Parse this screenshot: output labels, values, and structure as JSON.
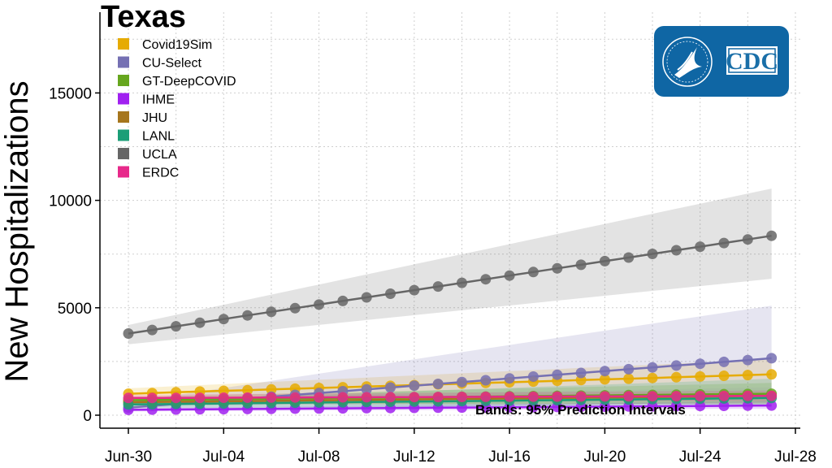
{
  "chart_data": {
    "type": "line",
    "title": "Texas",
    "ylabel": "New Hospitalizations",
    "xlabel": "",
    "ylim": [
      0,
      18500
    ],
    "xlim": [
      0,
      28
    ],
    "yticks": [
      0,
      5000,
      10000,
      15000
    ],
    "xticks": [
      {
        "day": 0,
        "label": "Jun-30"
      },
      {
        "day": 4,
        "label": "Jul-04"
      },
      {
        "day": 8,
        "label": "Jul-08"
      },
      {
        "day": 12,
        "label": "Jul-12"
      },
      {
        "day": 16,
        "label": "Jul-16"
      },
      {
        "day": 20,
        "label": "Jul-20"
      },
      {
        "day": 24,
        "label": "Jul-24"
      },
      {
        "day": 28,
        "label": "Jul-28"
      }
    ],
    "grid": true,
    "legend_position": "top-left",
    "annotation": "Bands: 95% Prediction Intervals",
    "series": [
      {
        "name": "Covid19Sim",
        "color": "#e6ab02",
        "start": 1000,
        "end": 1900,
        "lower_start": 750,
        "lower_end": 1300,
        "upper_start": 1250,
        "upper_end": 2600
      },
      {
        "name": "CU-Select",
        "color": "#7570b3",
        "start": 350,
        "end": 2650,
        "lower_start": 200,
        "lower_end": 600,
        "upper_start": 600,
        "upper_end": 5100
      },
      {
        "name": "GT-DeepCOVID",
        "color": "#66a61e",
        "start": 700,
        "end": 1000,
        "lower_start": 550,
        "lower_end": 500,
        "upper_start": 850,
        "upper_end": 1500
      },
      {
        "name": "IHME",
        "color": "#a020f0",
        "start": 250,
        "end": 450,
        "lower_start": 180,
        "lower_end": 300,
        "upper_start": 320,
        "upper_end": 650
      },
      {
        "name": "JHU",
        "color": "#a6761d",
        "start": 600,
        "end": 900,
        "lower_start": 450,
        "lower_end": 550,
        "upper_start": 750,
        "upper_end": 1300
      },
      {
        "name": "LANL",
        "color": "#1b9e77",
        "start": 500,
        "end": 800,
        "lower_start": 350,
        "lower_end": 400,
        "upper_start": 650,
        "upper_end": 1700
      },
      {
        "name": "UCLA",
        "color": "#666666",
        "start": 3800,
        "end": 8350,
        "lower_start": 3300,
        "lower_end": 6350,
        "upper_start": 4200,
        "upper_end": 10550
      },
      {
        "name": "ERDC",
        "color": "#e7298a",
        "start": 800,
        "end": 900,
        "lower_start": 650,
        "lower_end": 650,
        "upper_start": 950,
        "upper_end": 1150
      }
    ]
  },
  "logo": {
    "label": "CDC",
    "color": "#0f66a4"
  }
}
